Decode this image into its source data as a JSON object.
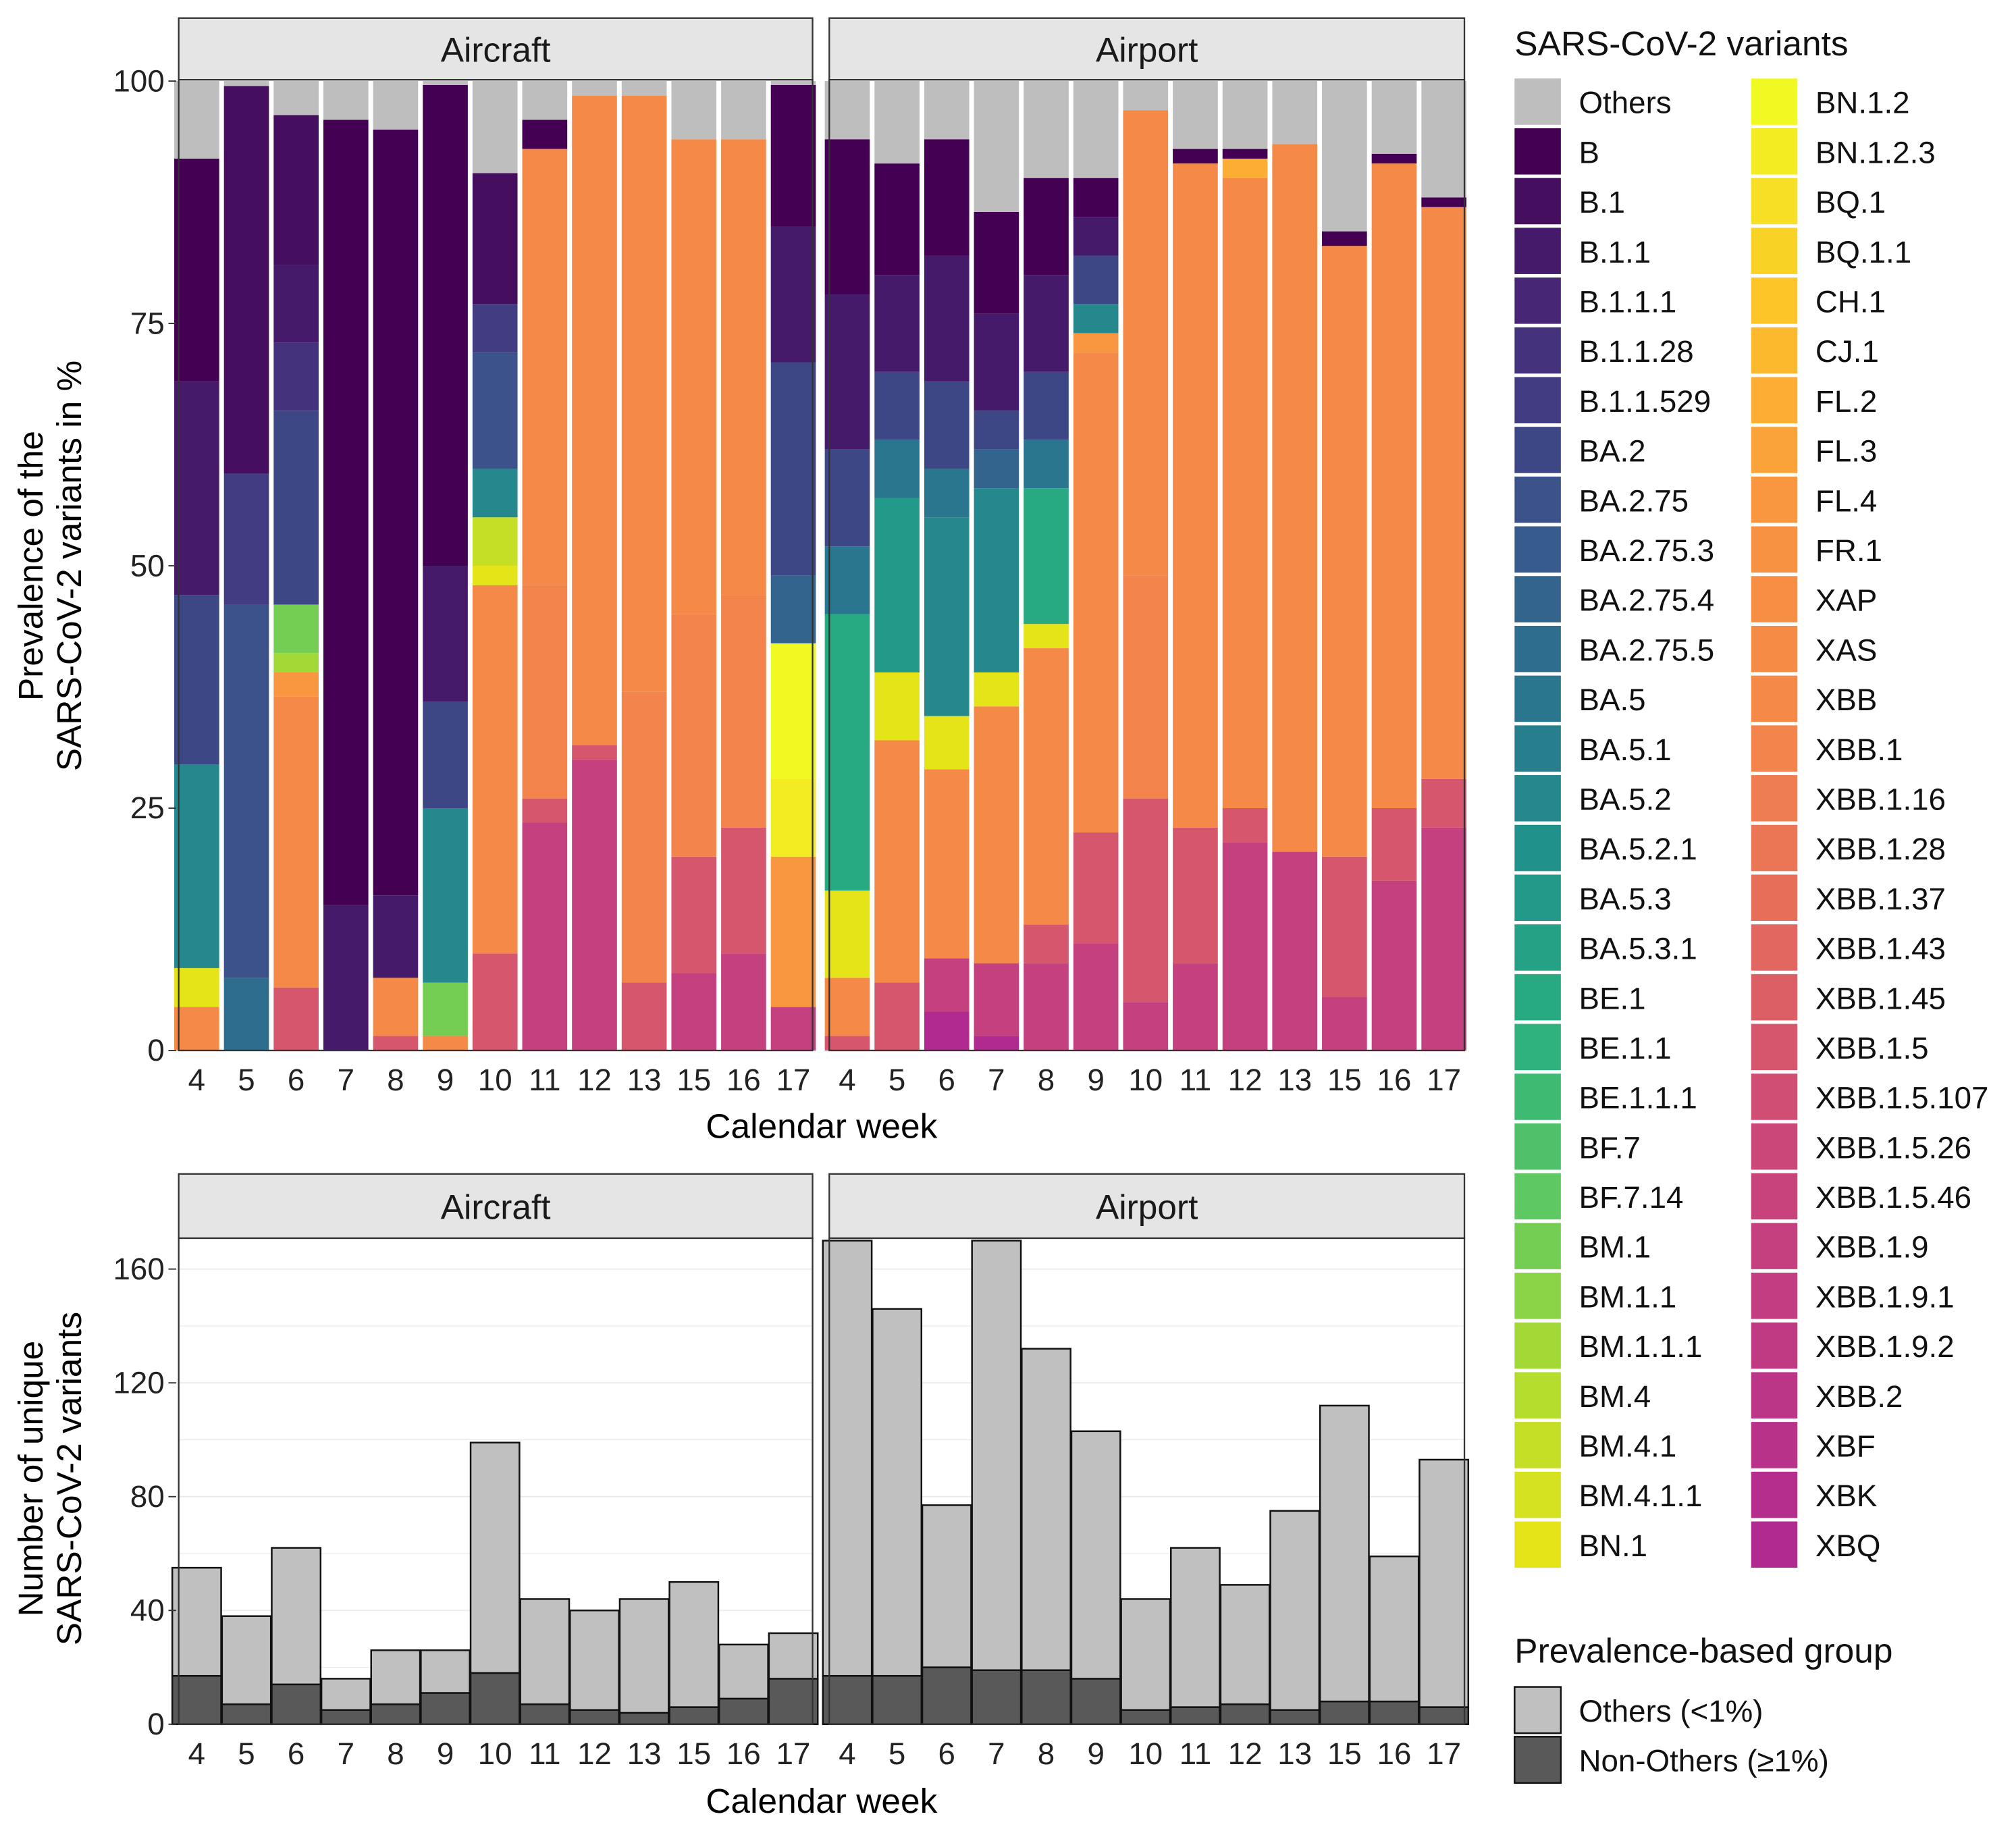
{
  "palette": {
    "others": "#bebebe",
    "left_stops": [
      "#440154",
      "#472d7b",
      "#3b528b",
      "#2c728e",
      "#21918c",
      "#28ae80",
      "#5ec962",
      "#addc30",
      "#e5e419"
    ],
    "right_stops": [
      "#f0f921",
      "#fdc328",
      "#f89441",
      "#f48849",
      "#e56b5d",
      "#cc4778",
      "#c03a83",
      "#b12a90"
    ],
    "others_group": "#c0c0c0",
    "non_others_group": "#595959"
  },
  "legend": {
    "title": "SARS-CoV-2 variants",
    "variants": [
      "Others",
      "B",
      "B.1",
      "B.1.1",
      "B.1.1.1",
      "B.1.1.28",
      "B.1.1.529",
      "BA.2",
      "BA.2.75",
      "BA.2.75.3",
      "BA.2.75.4",
      "BA.2.75.5",
      "BA.5",
      "BA.5.1",
      "BA.5.2",
      "BA.5.2.1",
      "BA.5.3",
      "BA.5.3.1",
      "BE.1",
      "BE.1.1",
      "BE.1.1.1",
      "BF.7",
      "BF.7.14",
      "BM.1",
      "BM.1.1",
      "BM.1.1.1",
      "BM.4",
      "BM.4.1",
      "BM.4.1.1",
      "BN.1",
      "BN.1.2",
      "BN.1.2.3",
      "BQ.1",
      "BQ.1.1",
      "CH.1",
      "CJ.1",
      "FL.2",
      "FL.3",
      "FL.4",
      "FR.1",
      "XAP",
      "XAS",
      "XBB",
      "XBB.1",
      "XBB.1.16",
      "XBB.1.28",
      "XBB.1.37",
      "XBB.1.43",
      "XBB.1.45",
      "XBB.1.5",
      "XBB.1.5.107",
      "XBB.1.5.26",
      "XBB.1.5.46",
      "XBB.1.9",
      "XBB.1.9.1",
      "XBB.1.9.2",
      "XBB.2",
      "XBF",
      "XBK",
      "XBQ"
    ],
    "group_title": "Prevalence-based group",
    "groups": [
      "Others (<1%)",
      "Non-Others (≥1%)"
    ]
  },
  "chart_data": [
    {
      "type": "bar",
      "stacked": true,
      "title": "",
      "xlabel": "Calendar week",
      "ylabel_lines": [
        "Prevalence of the",
        "SARS-CoV-2 variants in %"
      ],
      "ylim": [
        0,
        100
      ],
      "yticks": [
        "0",
        "25",
        "50",
        "75",
        "100"
      ],
      "categories": [
        "4",
        "5",
        "6",
        "7",
        "8",
        "9",
        "10",
        "11",
        "12",
        "13",
        "15",
        "16",
        "17"
      ],
      "panels": [
        {
          "name": "Aircraft",
          "bars": [
            [
              [
                "XBB",
                4.5
              ],
              [
                "BN.1",
                4
              ],
              [
                "BA.5.2",
                21
              ],
              [
                "BA.2",
                17.5
              ],
              [
                "B.1.1",
                22
              ],
              [
                "B",
                23
              ],
              [
                "Others",
                8
              ]
            ],
            [
              [
                "BA.2.75.5",
                7.5
              ],
              [
                "BA.2.75",
                38.5
              ],
              [
                "B.1.1.529",
                13.5
              ],
              [
                "B.1",
                40
              ],
              [
                "Others",
                0.5
              ]
            ],
            [
              [
                "XBB.1.5",
                6.5
              ],
              [
                "XBB",
                30
              ],
              [
                "FL.4",
                2.5
              ],
              [
                "BM.1.1.1",
                2
              ],
              [
                "BM.1",
                5
              ],
              [
                "BA.2",
                20
              ],
              [
                "B.1.1.28",
                7
              ],
              [
                "B.1.1",
                8
              ],
              [
                "B.1",
                15.5
              ],
              [
                "Others",
                3.5
              ]
            ],
            [
              [
                "B.1.1",
                15
              ],
              [
                "B",
                81
              ],
              [
                "Others",
                4
              ]
            ],
            [
              [
                "XBB.1.5",
                1.5
              ],
              [
                "XBB",
                6
              ],
              [
                "B.1.1",
                8.5
              ],
              [
                "B",
                79
              ],
              [
                "Others",
                5
              ]
            ],
            [
              [
                "XBB",
                1.5
              ],
              [
                "BM.1",
                5.5
              ],
              [
                "BA.5.2",
                18
              ],
              [
                "BA.2",
                11
              ],
              [
                "B.1.1",
                14
              ],
              [
                "B",
                49.6
              ],
              [
                "Others",
                0.4
              ]
            ],
            [
              [
                "XBB.1.5",
                10
              ],
              [
                "XBB",
                38
              ],
              [
                "BN.1",
                2
              ],
              [
                "BM.4.1",
                5
              ],
              [
                "BA.5.2",
                5
              ],
              [
                "BA.2.75",
                12
              ],
              [
                "B.1.1.529",
                5
              ],
              [
                "B.1",
                13.5
              ],
              [
                "Others",
                9.5
              ]
            ],
            [
              [
                "XBB.1.9",
                23.5
              ],
              [
                "XBB.1.5",
                2.5
              ],
              [
                "XBB.1",
                22
              ],
              [
                "XBB",
                45
              ],
              [
                "B",
                3
              ],
              [
                "Others",
                4
              ]
            ],
            [
              [
                "XBB.1.9",
                30
              ],
              [
                "XBB.1.5",
                1.5
              ],
              [
                "XBB",
                67
              ],
              [
                "Others",
                1.5
              ]
            ],
            [
              [
                "XBB.1.5",
                7
              ],
              [
                "XBB.1",
                30
              ],
              [
                "XBB",
                61.5
              ],
              [
                "Others",
                1.5
              ]
            ],
            [
              [
                "XBB.1.9",
                8
              ],
              [
                "XBB.1.5",
                12
              ],
              [
                "XBB.1",
                25
              ],
              [
                "XBB",
                49
              ],
              [
                "Others",
                6
              ]
            ],
            [
              [
                "XBB.1.9",
                10
              ],
              [
                "XBB.1.5",
                13
              ],
              [
                "XBB.1",
                24
              ],
              [
                "XBB",
                47
              ],
              [
                "Others",
                6
              ]
            ],
            [
              [
                "XBB.1.9",
                4.5
              ],
              [
                "FL.4",
                15.5
              ],
              [
                "BN.1.2.3",
                8
              ],
              [
                "BN.1.2",
                14
              ],
              [
                "BA.2.75.4",
                7
              ],
              [
                "BA.2",
                22
              ],
              [
                "B.1.1",
                14
              ],
              [
                "B",
                14.6
              ],
              [
                "Others",
                0.4
              ]
            ]
          ]
        },
        {
          "name": "Airport",
          "bars": [
            [
              [
                "XBB.1.5",
                1.5
              ],
              [
                "XBB",
                6
              ],
              [
                "BN.1",
                9
              ],
              [
                "BE.1",
                28.5
              ],
              [
                "BA.5",
                7
              ],
              [
                "BA.2",
                10
              ],
              [
                "B.1.1",
                16
              ],
              [
                "B",
                16
              ],
              [
                "Others",
                6
              ]
            ],
            [
              [
                "XBB.1.5",
                7
              ],
              [
                "XBB",
                25
              ],
              [
                "BN.1",
                7
              ],
              [
                "BA.5.3",
                18
              ],
              [
                "BA.5",
                6
              ],
              [
                "BA.2",
                7
              ],
              [
                "B.1.1",
                10
              ],
              [
                "B",
                11.5
              ],
              [
                "Others",
                8.5
              ]
            ],
            [
              [
                "XBQ",
                4
              ],
              [
                "XBB.1.9",
                5.5
              ],
              [
                "XBB",
                19.5
              ],
              [
                "BN.1",
                5.5
              ],
              [
                "BA.5.2",
                20.5
              ],
              [
                "BA.5",
                5
              ],
              [
                "BA.2",
                9
              ],
              [
                "B.1.1",
                13
              ],
              [
                "B",
                12
              ],
              [
                "Others",
                6
              ]
            ],
            [
              [
                "XBQ",
                1.5
              ],
              [
                "XBB.1.9",
                7.5
              ],
              [
                "XBB",
                26.5
              ],
              [
                "BN.1",
                3.5
              ],
              [
                "BA.5.2",
                19
              ],
              [
                "BA.2.75.4",
                4
              ],
              [
                "BA.2",
                4
              ],
              [
                "B.1.1",
                10
              ],
              [
                "B",
                10.5
              ],
              [
                "Others",
                13.5
              ]
            ],
            [
              [
                "XBB.1.9",
                9
              ],
              [
                "XBB.1.5",
                4
              ],
              [
                "XBB",
                28.5
              ],
              [
                "BN.1",
                2.5
              ],
              [
                "BE.1",
                14
              ],
              [
                "BA.5",
                5
              ],
              [
                "BA.2",
                7
              ],
              [
                "B.1.1",
                10
              ],
              [
                "B",
                10
              ],
              [
                "Others",
                10
              ]
            ],
            [
              [
                "XBB.1.9",
                11
              ],
              [
                "XBB.1.5",
                11.5
              ],
              [
                "XBB",
                49.5
              ],
              [
                "FL.4",
                2
              ],
              [
                "BA.5.2",
                3
              ],
              [
                "BA.2",
                5
              ],
              [
                "B.1.1",
                4
              ],
              [
                "B",
                4
              ],
              [
                "Others",
                10
              ]
            ],
            [
              [
                "XBB.1.9",
                5
              ],
              [
                "XBB.1.5",
                21
              ],
              [
                "XBB.1",
                23
              ],
              [
                "XBB",
                48
              ],
              [
                "Others",
                3
              ]
            ],
            [
              [
                "XBB.1.9",
                9
              ],
              [
                "XBB.1.5",
                14
              ],
              [
                "XBB",
                68.5
              ],
              [
                "B",
                1.5
              ],
              [
                "Others",
                7
              ]
            ],
            [
              [
                "XBB.1.9",
                21.5
              ],
              [
                "XBB.1.5",
                3.5
              ],
              [
                "XBB",
                65
              ],
              [
                "FL.2",
                2
              ],
              [
                "B",
                1
              ],
              [
                "Others",
                7
              ]
            ],
            [
              [
                "XBB.1.9",
                20.5
              ],
              [
                "XBB",
                73
              ],
              [
                "Others",
                6.5
              ]
            ],
            [
              [
                "XBB.1.9",
                5.5
              ],
              [
                "XBB.1.5",
                14.5
              ],
              [
                "XBB",
                63
              ],
              [
                "B",
                1.5
              ],
              [
                "Others",
                15.5
              ]
            ],
            [
              [
                "XBB.1.9",
                17.5
              ],
              [
                "XBB.1.5",
                7.5
              ],
              [
                "XBB",
                66.5
              ],
              [
                "B",
                1
              ],
              [
                "Others",
                7.5
              ]
            ],
            [
              [
                "XBB.1.9",
                23
              ],
              [
                "XBB.1.5",
                5
              ],
              [
                "XBB",
                59
              ],
              [
                "B",
                1
              ],
              [
                "Others",
                12
              ]
            ]
          ]
        }
      ]
    },
    {
      "type": "bar",
      "stacked": true,
      "xlabel": "Calendar week",
      "ylabel_lines": [
        "Number of unique",
        "SARS-CoV-2 variants"
      ],
      "ylim": [
        0,
        171
      ],
      "yticks": [
        "0",
        "40",
        "80",
        "120",
        "160"
      ],
      "categories": [
        "4",
        "5",
        "6",
        "7",
        "8",
        "9",
        "10",
        "11",
        "12",
        "13",
        "15",
        "16",
        "17"
      ],
      "panels": [
        {
          "name": "Aircraft",
          "total": [
            55,
            38,
            62,
            16,
            26,
            26,
            99,
            44,
            40,
            44,
            50,
            28,
            32
          ],
          "non_others": [
            17,
            7,
            14,
            5,
            7,
            11,
            18,
            7,
            5,
            4,
            6,
            9,
            16
          ]
        },
        {
          "name": "Airport",
          "total": [
            170,
            146,
            77,
            170,
            132,
            103,
            44,
            62,
            49,
            75,
            112,
            59,
            93
          ],
          "non_others": [
            17,
            17,
            20,
            19,
            19,
            16,
            5,
            6,
            7,
            5,
            8,
            8,
            6
          ]
        }
      ]
    }
  ]
}
